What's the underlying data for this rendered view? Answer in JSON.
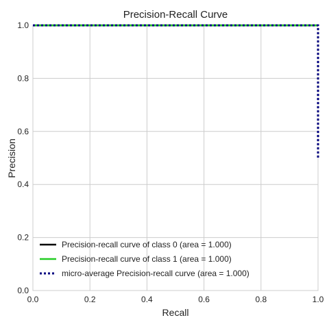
{
  "chart_data": {
    "type": "line",
    "title": "Precision-Recall Curve",
    "xlabel": "Recall",
    "ylabel": "Precision",
    "xlim": [
      0,
      1
    ],
    "ylim": [
      0,
      1
    ],
    "xticks": [
      "0.0",
      "0.2",
      "0.4",
      "0.6",
      "0.8",
      "1.0"
    ],
    "yticks": [
      "0.0",
      "0.2",
      "0.4",
      "0.6",
      "0.8",
      "1.0"
    ],
    "grid": true,
    "legend_position": "bottom-left",
    "series": [
      {
        "name": "Precision-recall curve of class 0 (area = 1.000)",
        "color": "#000000",
        "style": "solid",
        "x": [
          0.0,
          1.0
        ],
        "y": [
          1.0,
          1.0
        ]
      },
      {
        "name": "Precision-recall curve of class 1 (area = 1.000)",
        "color": "#22cc22",
        "style": "solid",
        "x": [
          0.0,
          1.0
        ],
        "y": [
          1.0,
          1.0
        ]
      },
      {
        "name": "micro-average Precision-recall curve (area = 1.000)",
        "color": "#000080",
        "style": "dotted",
        "x": [
          0.0,
          1.0,
          1.0
        ],
        "y": [
          1.0,
          1.0,
          0.5
        ]
      }
    ]
  }
}
